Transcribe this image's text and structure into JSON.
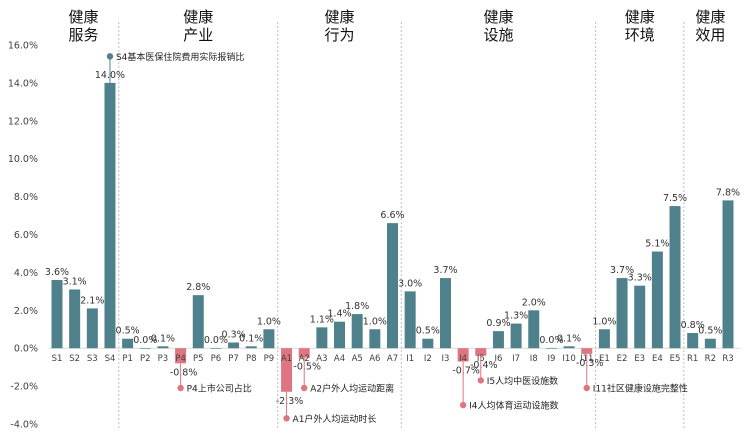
{
  "chart_data": {
    "type": "bar",
    "ylim": [
      -0.04,
      0.16
    ],
    "ytick_values": [
      -0.04,
      -0.02,
      0.0,
      0.02,
      0.04,
      0.06,
      0.08,
      0.1,
      0.12,
      0.14,
      0.16
    ],
    "ytick_labels": [
      "-4.0%",
      "-2.0%",
      "0.0%",
      "2.0%",
      "4.0%",
      "6.0%",
      "8.0%",
      "10.0%",
      "12.0%",
      "14.0%",
      "16.0%"
    ],
    "categories": [
      "S1",
      "S2",
      "S3",
      "S4",
      "P1",
      "P2",
      "P3",
      "P4",
      "P5",
      "P6",
      "P7",
      "P8",
      "P9",
      "A1",
      "A2",
      "A3",
      "A4",
      "A5",
      "A6",
      "A7",
      "I1",
      "I2",
      "I3",
      "I4",
      "I5",
      "I6",
      "I7",
      "I8",
      "I9",
      "I10",
      "I11",
      "E1",
      "E2",
      "E3",
      "E4",
      "E5",
      "R1",
      "R2",
      "R3"
    ],
    "values": [
      0.036,
      0.031,
      0.021,
      0.14,
      0.005,
      0.0,
      0.001,
      -0.008,
      0.028,
      0.0,
      0.003,
      0.001,
      0.01,
      -0.023,
      -0.005,
      0.011,
      0.014,
      0.018,
      0.01,
      0.066,
      0.03,
      0.005,
      0.037,
      -0.007,
      -0.004,
      0.009,
      0.013,
      0.02,
      0.0,
      0.001,
      -0.003,
      0.01,
      0.037,
      0.033,
      0.051,
      0.075,
      0.008,
      0.005,
      0.078
    ],
    "value_labels": [
      "3.6%",
      "3.1%",
      "2.1%",
      "14.0%",
      "0.5%",
      "0.0%",
      "0.1%",
      "-0.8%",
      "2.8%",
      "0.0%",
      "0.3%",
      "0.1%",
      "1.0%",
      "-2.3%",
      "-0.5%",
      "1.1%",
      "1.4%",
      "1.8%",
      "1.0%",
      "6.6%",
      "3.0%",
      "0.5%",
      "3.7%",
      "-0.7%",
      "-0.4%",
      "0.9%",
      "1.3%",
      "2.0%",
      "0.0%",
      "0.1%",
      "-0.3%",
      "1.0%",
      "3.7%",
      "3.3%",
      "5.1%",
      "7.5%",
      "0.8%",
      "0.5%",
      "7.8%"
    ],
    "colors": {
      "positive": "#4f818d",
      "negative": "#df7581",
      "highlight_line": "#4f818d",
      "group_divider": "#bfbfbf"
    },
    "groups": [
      {
        "line1": "健康",
        "line2": "服务",
        "start": 0,
        "end": 3
      },
      {
        "line1": "健康",
        "line2": "产业",
        "start": 4,
        "end": 12
      },
      {
        "line1": "健康",
        "line2": "行为",
        "start": 13,
        "end": 19
      },
      {
        "line1": "健康",
        "line2": "设施",
        "start": 20,
        "end": 30
      },
      {
        "line1": "健康",
        "line2": "环境",
        "start": 31,
        "end": 35
      },
      {
        "line1": "健康",
        "line2": "效用",
        "start": 36,
        "end": 38
      }
    ],
    "annotations": [
      {
        "target": "S4",
        "text": "S4基本医保住院费用实际报销比",
        "marker": 0.154,
        "sign": "positive"
      },
      {
        "target": "P4",
        "text": "P4上市公司占比",
        "marker": -0.021,
        "sign": "negative"
      },
      {
        "target": "A1",
        "text": "A1户外人均运动时长",
        "marker": -0.037,
        "sign": "negative"
      },
      {
        "target": "A2",
        "text": "A2户外人均运动距离",
        "marker": -0.021,
        "sign": "negative"
      },
      {
        "target": "I4",
        "text": "I4人均体育运动设施数",
        "marker": -0.03,
        "sign": "negative"
      },
      {
        "target": "I5",
        "text": "I5人均中医设施数",
        "marker": -0.017,
        "sign": "negative"
      },
      {
        "target": "I11",
        "text": "I11社区健康设施完整性",
        "marker": -0.021,
        "sign": "negative"
      }
    ],
    "grid": false,
    "legend": "none"
  }
}
